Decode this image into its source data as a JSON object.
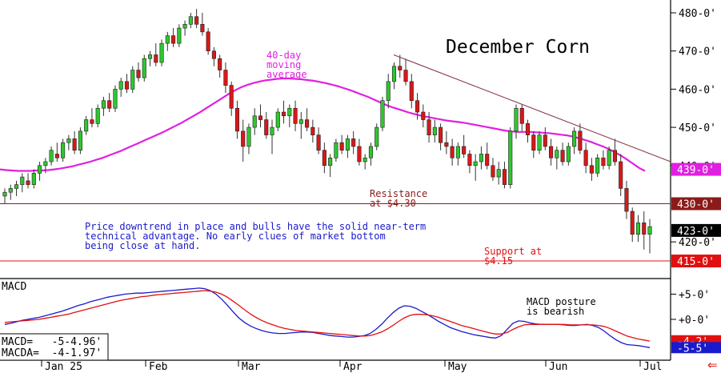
{
  "chart_data": [
    {
      "type": "candlestick",
      "title": "December Corn",
      "y_unit_note": "cents per bushel (eighths notation)",
      "ylim": [
        411,
        483
      ],
      "y_ticks": [
        "480-0'",
        "470-0'",
        "460-0'",
        "450-0'",
        "440-0'",
        "420-0'"
      ],
      "x_ticks": [
        "Jan 25",
        "Feb",
        "Mar",
        "Apr",
        "May",
        "Jun",
        "Jul"
      ],
      "ohlc_daily_approx": [
        [
          432,
          434,
          430,
          433
        ],
        [
          433,
          435,
          431,
          434
        ],
        [
          434,
          436,
          432,
          435
        ],
        [
          435,
          438,
          433,
          437
        ],
        [
          436,
          438,
          434,
          435
        ],
        [
          435,
          439,
          434,
          438
        ],
        [
          438,
          441,
          436,
          440
        ],
        [
          440,
          442,
          438,
          441
        ],
        [
          441,
          445,
          440,
          444
        ],
        [
          443,
          446,
          441,
          442
        ],
        [
          442,
          447,
          441,
          446
        ],
        [
          446,
          448,
          444,
          447
        ],
        [
          447,
          449,
          443,
          444
        ],
        [
          444,
          450,
          443,
          449
        ],
        [
          449,
          453,
          448,
          452
        ],
        [
          452,
          455,
          450,
          451
        ],
        [
          451,
          456,
          450,
          455
        ],
        [
          455,
          458,
          453,
          457
        ],
        [
          457,
          459,
          454,
          455
        ],
        [
          455,
          461,
          454,
          460
        ],
        [
          460,
          463,
          458,
          462
        ],
        [
          462,
          464,
          459,
          460
        ],
        [
          460,
          466,
          459,
          465
        ],
        [
          465,
          467,
          462,
          463
        ],
        [
          463,
          469,
          462,
          468
        ],
        [
          468,
          470,
          466,
          469
        ],
        [
          469,
          472,
          466,
          467
        ],
        [
          467,
          473,
          466,
          472
        ],
        [
          472,
          475,
          470,
          474
        ],
        [
          474,
          476,
          471,
          472
        ],
        [
          472,
          477,
          471,
          476
        ],
        [
          476,
          478,
          474,
          477
        ],
        [
          477,
          480,
          476,
          479
        ],
        [
          479,
          481,
          476,
          477
        ],
        [
          477,
          480,
          474,
          475
        ],
        [
          475,
          476,
          469,
          470
        ],
        [
          470,
          471,
          466,
          468
        ],
        [
          468,
          469,
          463,
          465
        ],
        [
          465,
          467,
          459,
          461
        ],
        [
          461,
          462,
          453,
          455
        ],
        [
          455,
          457,
          447,
          449
        ],
        [
          449,
          452,
          441,
          445
        ],
        [
          445,
          451,
          443,
          450
        ],
        [
          450,
          455,
          448,
          453
        ],
        [
          453,
          456,
          450,
          452
        ],
        [
          452,
          454,
          447,
          448
        ],
        [
          448,
          452,
          443,
          450
        ],
        [
          450,
          455,
          449,
          454
        ],
        [
          454,
          457,
          451,
          453
        ],
        [
          453,
          456,
          450,
          455
        ],
        [
          455,
          457,
          449,
          451
        ],
        [
          451,
          454,
          447,
          452
        ],
        [
          452,
          455,
          449,
          450
        ],
        [
          450,
          452,
          446,
          448
        ],
        [
          448,
          450,
          443,
          444
        ],
        [
          444,
          446,
          438,
          440
        ],
        [
          440,
          443,
          437,
          442
        ],
        [
          442,
          447,
          441,
          446
        ],
        [
          446,
          448,
          443,
          444
        ],
        [
          444,
          448,
          442,
          447
        ],
        [
          447,
          449,
          443,
          445
        ],
        [
          445,
          447,
          440,
          441
        ],
        [
          441,
          443,
          439,
          442
        ],
        [
          442,
          446,
          440,
          445
        ],
        [
          445,
          451,
          444,
          450
        ],
        [
          450,
          458,
          449,
          457
        ],
        [
          457,
          464,
          455,
          462
        ],
        [
          462,
          467,
          460,
          466
        ],
        [
          466,
          469,
          463,
          465
        ],
        [
          465,
          468,
          461,
          462
        ],
        [
          462,
          464,
          455,
          457
        ],
        [
          457,
          459,
          452,
          454
        ],
        [
          454,
          456,
          450,
          452
        ],
        [
          452,
          454,
          446,
          448
        ],
        [
          448,
          452,
          446,
          450
        ],
        [
          450,
          451,
          444,
          446
        ],
        [
          446,
          449,
          443,
          445
        ],
        [
          445,
          447,
          440,
          442
        ],
        [
          442,
          446,
          440,
          445
        ],
        [
          445,
          448,
          442,
          443
        ],
        [
          443,
          444,
          438,
          440
        ],
        [
          440,
          443,
          436,
          441
        ],
        [
          441,
          445,
          439,
          443
        ],
        [
          443,
          446,
          439,
          440
        ],
        [
          440,
          442,
          436,
          437
        ],
        [
          437,
          441,
          435,
          439
        ],
        [
          439,
          441,
          434,
          435
        ],
        [
          435,
          450,
          434,
          449
        ],
        [
          449,
          456,
          447,
          455
        ],
        [
          455,
          456,
          449,
          451
        ],
        [
          451,
          452,
          446,
          448
        ],
        [
          448,
          449,
          442,
          444
        ],
        [
          444,
          449,
          443,
          448
        ],
        [
          448,
          450,
          444,
          445
        ],
        [
          445,
          447,
          440,
          442
        ],
        [
          442,
          445,
          439,
          444
        ],
        [
          444,
          446,
          440,
          441
        ],
        [
          441,
          446,
          440,
          445
        ],
        [
          445,
          450,
          443,
          449
        ],
        [
          449,
          451,
          443,
          444
        ],
        [
          444,
          446,
          438,
          440
        ],
        [
          440,
          442,
          436,
          438
        ],
        [
          438,
          443,
          437,
          442
        ],
        [
          442,
          444,
          439,
          440
        ],
        [
          440,
          445,
          439,
          444
        ],
        [
          444,
          447,
          440,
          441
        ],
        [
          441,
          443,
          432,
          434
        ],
        [
          434,
          436,
          426,
          428
        ],
        [
          428,
          429,
          420,
          422
        ],
        [
          422,
          427,
          420,
          425
        ],
        [
          425,
          428,
          418,
          422
        ],
        [
          422,
          426,
          417,
          424
        ]
      ],
      "series": [
        {
          "name": "40-day moving average",
          "color": "#e020e0",
          "values": [
            439,
            438.8,
            438.7,
            438.6,
            438.6,
            438.6,
            438.7,
            438.7,
            438.8,
            439.0,
            439.2,
            439.5,
            439.8,
            440.2,
            440.6,
            441.0,
            441.5,
            442.0,
            442.6,
            443.2,
            443.8,
            444.5,
            445.2,
            445.9,
            446.6,
            447.3,
            448.0,
            448.7,
            449.5,
            450.3,
            451.1,
            452.0,
            452.9,
            453.8,
            454.8,
            455.8,
            456.8,
            457.8,
            458.8,
            459.7,
            460.5,
            461.1,
            461.6,
            462.0,
            462.3,
            462.5,
            462.7,
            462.8,
            462.8,
            462.7,
            462.6,
            462.4,
            462.2,
            461.9,
            461.6,
            461.2,
            460.8,
            460.3,
            459.8,
            459.2,
            458.6,
            458.0,
            457.3,
            456.6,
            455.9,
            455.3,
            454.8,
            454.3,
            453.8,
            453.4,
            453.0,
            452.7,
            452.4,
            452.1,
            451.8,
            451.6,
            451.4,
            451.2,
            450.9,
            450.6,
            450.3,
            450.0,
            449.7,
            449.4,
            449.1,
            448.9,
            448.8,
            448.8,
            448.8,
            448.7,
            448.6,
            448.5,
            448.3,
            448.1,
            447.9,
            447.6,
            447.2,
            446.7,
            446.2,
            445.6,
            445.0,
            444.3,
            443.5,
            442.6,
            441.6,
            440.5,
            439.4,
            438.6
          ]
        }
      ],
      "reference_lines": [
        {
          "label": "Resistance at $4.30",
          "value": 430.0
        },
        {
          "label": "Support at $4.15",
          "value": 415.0
        }
      ],
      "trendline": {
        "from": [
          460.0,
          469.0
        ],
        "to": [
          838.0,
          441.0
        ]
      },
      "price_tags": [
        {
          "text": "439-0'",
          "value": 439.0,
          "bg": "#e020e0",
          "fg": "#ffffff"
        },
        {
          "text": "430-0'",
          "value": 430.0,
          "bg": "#8b1a1a",
          "fg": "#ffffff"
        },
        {
          "text": "423-0'",
          "value": 423.0,
          "bg": "#000000",
          "fg": "#ffffff"
        },
        {
          "text": "415-0'",
          "value": 415.0,
          "bg": "#e01010",
          "fg": "#ffffff"
        }
      ],
      "annotations": {
        "ma_label": [
          "40-day",
          "moving",
          "average"
        ],
        "resistance_label": [
          "Resistance",
          "at $4.30"
        ],
        "support_label": [
          "Support at",
          "$4.15"
        ],
        "commentary": [
          "Price downtrend in place and bulls have the solid near-term",
          "technical advantage. No early clues of market bottom",
          "being close at hand."
        ]
      }
    },
    {
      "type": "line",
      "title": "MACD",
      "ylim": [
        -7,
        7
      ],
      "y_ticks": [
        "+5-0'",
        "+0-0'"
      ],
      "readouts": [
        "MACD=   -5-4.96'",
        "MACDA=  -4-1.97'"
      ],
      "annotation": [
        "MACD posture",
        "is bearish"
      ],
      "price_tags": [
        {
          "text": "-4-2'",
          "value": -4.25,
          "bg": "#e01010",
          "fg": "#ffffff"
        },
        {
          "text": "-5-5'",
          "value": -5.6,
          "bg": "#1a1acc",
          "fg": "#ffffff"
        }
      ],
      "series": [
        {
          "name": "MACD",
          "color": "#1a1acc",
          "values": [
            -1.0,
            -0.8,
            -0.5,
            -0.2,
            0.0,
            0.2,
            0.4,
            0.7,
            1.0,
            1.3,
            1.6,
            2.0,
            2.4,
            2.8,
            3.1,
            3.5,
            3.8,
            4.1,
            4.4,
            4.6,
            4.8,
            5.0,
            5.1,
            5.2,
            5.2,
            5.3,
            5.4,
            5.5,
            5.6,
            5.7,
            5.8,
            5.9,
            6.0,
            6.1,
            6.2,
            6.1,
            5.7,
            5.0,
            4.0,
            2.8,
            1.5,
            0.3,
            -0.6,
            -1.3,
            -1.8,
            -2.2,
            -2.5,
            -2.7,
            -2.8,
            -2.8,
            -2.7,
            -2.6,
            -2.5,
            -2.5,
            -2.6,
            -2.8,
            -3.0,
            -3.2,
            -3.3,
            -3.4,
            -3.5,
            -3.5,
            -3.4,
            -3.2,
            -2.8,
            -2.0,
            -1.0,
            0.2,
            1.3,
            2.2,
            2.7,
            2.6,
            2.2,
            1.6,
            1.0,
            0.3,
            -0.4,
            -1.0,
            -1.6,
            -2.0,
            -2.4,
            -2.7,
            -3.0,
            -3.2,
            -3.4,
            -3.6,
            -3.7,
            -3.2,
            -2.0,
            -0.8,
            -0.3,
            -0.4,
            -0.7,
            -0.9,
            -1.0,
            -1.0,
            -1.0,
            -1.0,
            -1.1,
            -1.2,
            -1.2,
            -1.1,
            -1.0,
            -1.2,
            -1.6,
            -2.3,
            -3.2,
            -4.0,
            -4.6,
            -5.0,
            -5.1,
            -5.2,
            -5.4,
            -5.6
          ]
        },
        {
          "name": "MACDA",
          "color": "#e01010",
          "values": [
            -0.6,
            -0.5,
            -0.4,
            -0.3,
            -0.2,
            -0.1,
            0.0,
            0.2,
            0.4,
            0.6,
            0.8,
            1.0,
            1.3,
            1.6,
            1.9,
            2.2,
            2.5,
            2.8,
            3.1,
            3.4,
            3.7,
            3.9,
            4.1,
            4.3,
            4.5,
            4.6,
            4.8,
            4.9,
            5.0,
            5.1,
            5.2,
            5.3,
            5.4,
            5.5,
            5.6,
            5.7,
            5.6,
            5.4,
            5.0,
            4.4,
            3.6,
            2.8,
            1.9,
            1.1,
            0.4,
            -0.2,
            -0.7,
            -1.1,
            -1.5,
            -1.8,
            -2.0,
            -2.2,
            -2.3,
            -2.4,
            -2.5,
            -2.6,
            -2.7,
            -2.8,
            -2.9,
            -3.0,
            -3.1,
            -3.2,
            -3.3,
            -3.3,
            -3.2,
            -2.9,
            -2.5,
            -1.9,
            -1.2,
            -0.4,
            0.3,
            0.8,
            1.0,
            1.0,
            0.9,
            0.7,
            0.4,
            0.0,
            -0.4,
            -0.8,
            -1.2,
            -1.5,
            -1.8,
            -2.1,
            -2.4,
            -2.7,
            -2.9,
            -2.9,
            -2.6,
            -2.0,
            -1.5,
            -1.1,
            -1.0,
            -1.0,
            -1.0,
            -1.0,
            -1.0,
            -1.0,
            -1.0,
            -1.1,
            -1.1,
            -1.1,
            -1.1,
            -1.1,
            -1.2,
            -1.4,
            -1.8,
            -2.3,
            -2.8,
            -3.3,
            -3.6,
            -3.9,
            -4.1,
            -4.3
          ]
        }
      ]
    }
  ],
  "colors": {
    "up_candle": "#2ec72e",
    "down_candle": "#d81818",
    "wick": "#333333",
    "ma_line": "#e020e0",
    "resistance_line": "#8b1a1a",
    "support_line": "#e01010",
    "trendline": "#8b3a4a",
    "macd_line": "#1a1acc",
    "macda_line": "#e01010",
    "axis": "#000000",
    "nav_arrow": "#e01010"
  },
  "nav": {
    "icon": "arrow-left-icon",
    "glyph": "⇐"
  }
}
